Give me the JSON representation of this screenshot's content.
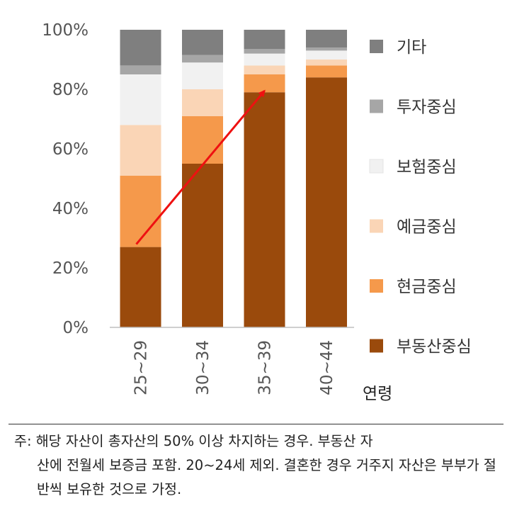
{
  "chart_data": {
    "type": "bar",
    "stacked": true,
    "categories": [
      "25~29",
      "30~34",
      "35~39",
      "40~44"
    ],
    "xlabel": "연령",
    "ylabel": "",
    "ylim": [
      0,
      100
    ],
    "y_ticks": [
      "0%",
      "20%",
      "40%",
      "60%",
      "80%",
      "100%"
    ],
    "grid": false,
    "legend_position": "right",
    "series": [
      {
        "name": "부동산중심",
        "color": "#9a4a0c",
        "values": [
          27,
          55,
          79,
          84
        ]
      },
      {
        "name": "현금중심",
        "color": "#f5994b",
        "values": [
          24,
          16,
          6,
          4
        ]
      },
      {
        "name": "예금중심",
        "color": "#fad5b6",
        "values": [
          17,
          9,
          3,
          2
        ]
      },
      {
        "name": "보험중심",
        "color": "#f1f1f1",
        "values": [
          17,
          9,
          4,
          3
        ]
      },
      {
        "name": "투자중심",
        "color": "#a6a6a6",
        "values": [
          3,
          2.5,
          1.5,
          1
        ]
      },
      {
        "name": "기타",
        "color": "#7f7f7f",
        "values": [
          12,
          8.5,
          6.5,
          6
        ]
      }
    ],
    "annotation": {
      "type": "arrow",
      "color": "#ee1111",
      "from": {
        "category": "25~29",
        "y": 27
      },
      "to": {
        "category": "35~39",
        "y": 79
      }
    }
  },
  "note": {
    "lead": "주: 해당 자산이 총자산의 50% 이상 차지하는 경우. 부동산 자",
    "rest": "산에 전월세 보증금 포함. 20~24세 제외. 결혼한 경우 거주지 자산은 부부가 절반씩 보유한 것으로 가정."
  }
}
